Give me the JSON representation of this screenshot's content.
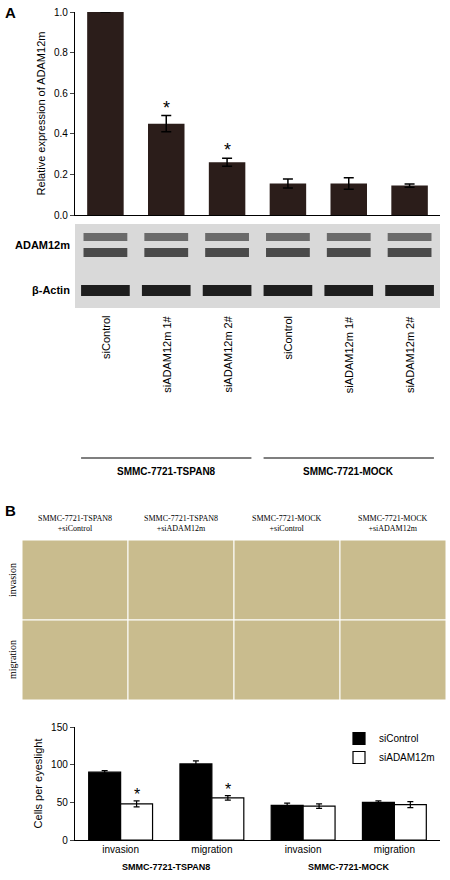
{
  "chart_data": [
    {
      "label": "A",
      "type": "bar",
      "y_label": "Relative expression of ADAM12m",
      "categories": [
        "siControl",
        "siADAM12m 1#",
        "siADAM12m 2#",
        "siControl",
        "siADAM12m 1#",
        "siADAM12m 2#"
      ],
      "groups": [
        "SMMC-7721-TSPAN8",
        "SMMC-7721-TSPAN8",
        "SMMC-7721-TSPAN8",
        "SMMC-7721-MOCK",
        "SMMC-7721-MOCK",
        "SMMC-7721-MOCK"
      ],
      "values": [
        1.0,
        0.45,
        0.26,
        0.155,
        0.155,
        0.145
      ],
      "errors": [
        0,
        0.04,
        0.02,
        0.022,
        0.028,
        0.008
      ],
      "significance": [
        null,
        "*",
        "*",
        null,
        null,
        null
      ],
      "color": "#2b1d1a",
      "ylim": [
        0,
        1.0
      ],
      "yticks": [
        {
          "value": 0,
          "label": "0.0"
        },
        {
          "value": 0.2,
          "label": "0.2"
        },
        {
          "value": 0.4,
          "label": "0.4"
        },
        {
          "value": 0.6,
          "label": "0.6"
        },
        {
          "value": 0.8,
          "label": "0.8"
        },
        {
          "value": 1.0,
          "label": "1.0"
        }
      ],
      "grid": false,
      "blot": {
        "bands": [
          "ADAM12m",
          "β-Actin"
        ]
      }
    },
    {
      "label": "B",
      "type": "bar",
      "micrographs": {
        "columns": [
          [
            "SMMC-7721-TSPAN8",
            "+siControl"
          ],
          [
            "SMMC-7721-TSPAN8",
            "+siADAM12m"
          ],
          [
            "SMMC-7721-MOCK",
            "+siControl"
          ],
          [
            "SMMC-7721-MOCK",
            "+siADAM12m"
          ]
        ],
        "rows": [
          "invasion",
          "migration"
        ]
      },
      "y_label": "Cells per eyeslight",
      "categories": [
        "invasion",
        "migration",
        "invasion",
        "migration"
      ],
      "groups": [
        "SMMC-7721-TSPAN8",
        "SMMC-7721-TSPAN8",
        "SMMC-7721-MOCK",
        "SMMC-7721-MOCK"
      ],
      "series": [
        {
          "name": "siControl",
          "color": "#000000",
          "values": [
            90,
            101,
            46,
            50
          ],
          "errors": [
            2,
            4,
            3,
            2
          ],
          "significance": [
            null,
            null,
            null,
            null
          ]
        },
        {
          "name": "siADAM12m",
          "color": "#ffffff",
          "values": [
            48,
            56,
            45,
            47
          ],
          "errors": [
            4,
            3,
            3,
            4
          ],
          "significance": [
            "*",
            "*",
            null,
            null
          ]
        }
      ],
      "ylim": [
        0,
        150
      ],
      "yticks": [
        0,
        50,
        100,
        150
      ],
      "grid": false,
      "legend": "top right"
    }
  ]
}
